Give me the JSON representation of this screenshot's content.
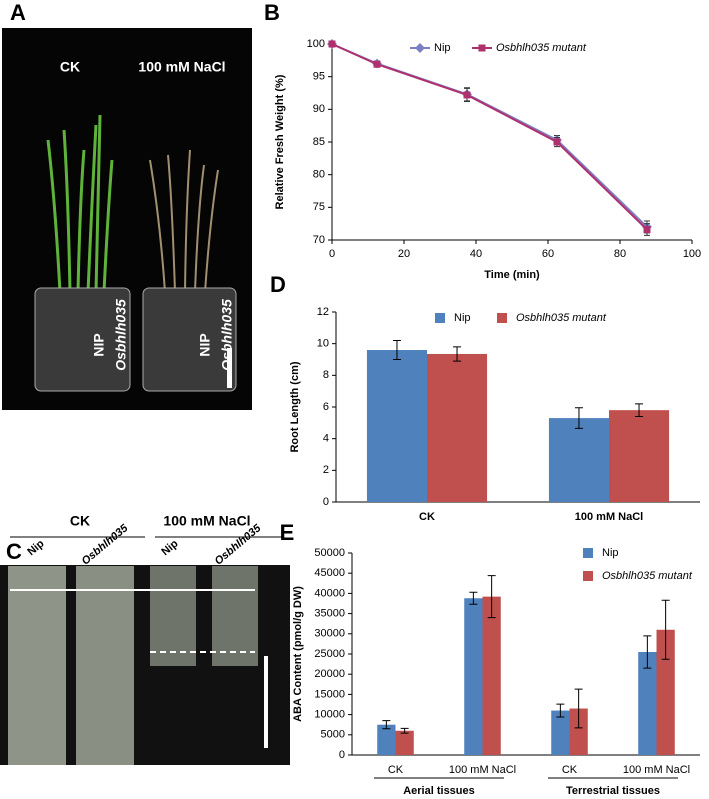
{
  "panel_letters": [
    "A",
    "B",
    "C",
    "D",
    "E"
  ],
  "photo_a": {
    "conditions": [
      "CK",
      "100 mM NaCl"
    ],
    "pot_labels": [
      [
        "NIP",
        "Osbhlh035"
      ],
      [
        "NIP",
        "Osbhlh035"
      ]
    ]
  },
  "photo_c": {
    "conditions": [
      "CK",
      "100 mM NaCl"
    ],
    "column_labels": [
      "Nip",
      "Osbhlh035",
      "Nip",
      "Osbhlh035"
    ]
  },
  "chart_data": [
    {
      "type": "line",
      "ylabel": "Relative Fresh Weight (%)",
      "xlabel": "Time (min)",
      "x": [
        0,
        12.5,
        37.5,
        62.5,
        87.5
      ],
      "series": [
        {
          "name": "Nip",
          "color": "#7b7fc4",
          "marker": "diamond",
          "values": [
            100,
            97,
            92.3,
            85.3,
            72
          ],
          "errors": [
            0.2,
            0.4,
            1.0,
            0.7,
            0.9
          ]
        },
        {
          "name": "Osbhlh035 mutant",
          "color": "#b0306e",
          "marker": "square",
          "values": [
            100,
            96.9,
            92.2,
            85.0,
            71.6
          ],
          "errors": [
            0.2,
            0.4,
            1.0,
            0.7,
            0.9
          ]
        }
      ],
      "xlim": [
        0,
        100
      ],
      "xticks": [
        0,
        20,
        40,
        60,
        80,
        100
      ],
      "ylim": [
        70,
        100
      ],
      "yticks": [
        70,
        75,
        80,
        85,
        90,
        95,
        100
      ]
    },
    {
      "type": "bar",
      "ylabel": "Root Length (cm)",
      "categories": [
        "CK",
        "100 mM NaCl"
      ],
      "series": [
        {
          "name": "Nip",
          "color": "#4f81bd",
          "values": [
            9.6,
            5.3
          ],
          "errors": [
            0.6,
            0.65
          ]
        },
        {
          "name": "Osbhlh035 mutant",
          "color": "#c0504d",
          "values": [
            9.35,
            5.8
          ],
          "errors": [
            0.45,
            0.4
          ]
        }
      ],
      "ylim": [
        0,
        12
      ],
      "yticks": [
        0,
        2,
        4,
        6,
        8,
        10,
        12
      ]
    },
    {
      "type": "bar",
      "ylabel": "ABA Content (pmol/g DW)",
      "categories": [
        "CK",
        "100 mM NaCl",
        "CK",
        "100 mM NaCl"
      ],
      "groups": [
        "Aerial tissues",
        "Terrestrial tissues"
      ],
      "series": [
        {
          "name": "Nip",
          "color": "#4f81bd",
          "values": [
            7500,
            38800,
            11000,
            25500
          ],
          "errors": [
            1000,
            1500,
            1600,
            4000
          ]
        },
        {
          "name": "Osbhlh035 mutant",
          "color": "#c0504d",
          "values": [
            6000,
            39200,
            11500,
            31000
          ],
          "errors": [
            600,
            5200,
            4800,
            7300
          ]
        }
      ],
      "ylim": [
        0,
        50000
      ],
      "yticks": [
        0,
        5000,
        10000,
        15000,
        20000,
        25000,
        30000,
        35000,
        40000,
        45000,
        50000
      ]
    }
  ]
}
